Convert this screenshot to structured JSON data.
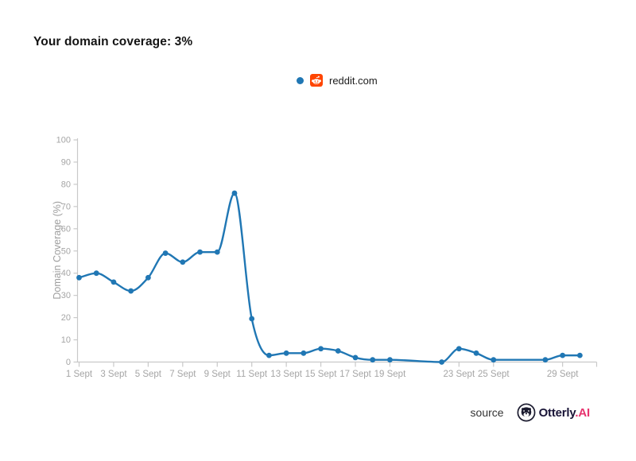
{
  "title": "Your domain coverage: 3%",
  "legend": {
    "series_label": "reddit.com",
    "dot_color": "#2077b4",
    "favicon_icon": "reddit-icon",
    "favicon_color": "#ff4500"
  },
  "footer": {
    "source_label": "source",
    "brand": "Otterly",
    "brand_suffix": ".AI",
    "brand_color": "#191437",
    "brand_suffix_color": "#e7336e"
  },
  "chart_data": {
    "type": "line",
    "title": "",
    "xlabel": "",
    "ylabel": "Domain Coverage (%)",
    "ylim": [
      0,
      100
    ],
    "xlim_days": [
      1,
      31
    ],
    "grid": "off",
    "legend_position": "top-center",
    "axis_color": "#c9c9c9",
    "tick_label_color": "#a5a5a5",
    "y_ticks": [
      0,
      10,
      20,
      30,
      40,
      50,
      60,
      70,
      80,
      90,
      100
    ],
    "x_ticks": [
      {
        "day": 1,
        "label": "1 Sept"
      },
      {
        "day": 3,
        "label": "3 Sept"
      },
      {
        "day": 5,
        "label": "5 Sept"
      },
      {
        "day": 7,
        "label": "7 Sept"
      },
      {
        "day": 9,
        "label": "9 Sept"
      },
      {
        "day": 11,
        "label": "11 Sept"
      },
      {
        "day": 13,
        "label": "13 Sept"
      },
      {
        "day": 15,
        "label": "15 Sept"
      },
      {
        "day": 17,
        "label": "17 Sept"
      },
      {
        "day": 19,
        "label": "19 Sept"
      },
      {
        "day": 23,
        "label": "23 Sept"
      },
      {
        "day": 25,
        "label": "25 Sept"
      },
      {
        "day": 29,
        "label": "29 Sept"
      }
    ],
    "series": [
      {
        "name": "reddit.com",
        "color": "#2077b4",
        "points": [
          [
            1,
            38
          ],
          [
            2,
            40
          ],
          [
            3,
            36
          ],
          [
            4,
            32
          ],
          [
            5,
            38
          ],
          [
            6,
            49
          ],
          [
            7,
            45
          ],
          [
            8,
            49.5
          ],
          [
            9,
            49.5
          ],
          [
            10,
            76
          ],
          [
            11,
            19.5
          ],
          [
            12,
            3
          ],
          [
            13,
            4
          ],
          [
            14,
            4
          ],
          [
            15,
            6
          ],
          [
            16,
            5
          ],
          [
            17,
            2
          ],
          [
            18,
            1
          ],
          [
            19,
            1
          ],
          [
            22,
            0
          ],
          [
            23,
            6
          ],
          [
            24,
            4
          ],
          [
            25,
            1
          ],
          [
            28,
            1
          ],
          [
            29,
            3
          ],
          [
            30,
            3
          ]
        ]
      }
    ]
  }
}
